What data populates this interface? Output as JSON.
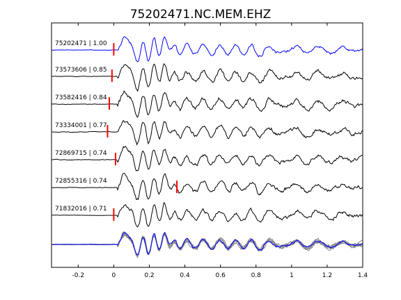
{
  "chart_data": {
    "type": "line",
    "title": "75202471.NC.MEM.EHZ",
    "xlabel": "",
    "ylabel": "",
    "xlim": [
      -0.35,
      1.4
    ],
    "x_ticks": [
      -0.2,
      0,
      0.2,
      0.4,
      0.6,
      0.8,
      1,
      1.2,
      1.4
    ],
    "x_tick_labels": [
      "-0.2",
      "0",
      "0.2",
      "0.4",
      "0.6",
      "0.8",
      "1",
      "1.2",
      "1.4"
    ],
    "grid": false,
    "colors": {
      "template": "#0000ff",
      "trace": "#000000",
      "pick": "#ff0000",
      "stack_member": "#888888",
      "axes": "#000000"
    },
    "traces": [
      {
        "id": "75202471",
        "cc": "1.00",
        "pick_time": 0.0,
        "color": "template"
      },
      {
        "id": "73573606",
        "cc": "0.85",
        "pick_time": -0.01,
        "color": "trace"
      },
      {
        "id": "73582416",
        "cc": "0.84",
        "pick_time": -0.025,
        "color": "trace"
      },
      {
        "id": "73334001",
        "cc": "0.77",
        "pick_time": -0.035,
        "color": "trace"
      },
      {
        "id": "72869715",
        "cc": "0.74",
        "pick_time": 0.01,
        "color": "trace"
      },
      {
        "id": "72855316",
        "cc": "0.74",
        "pick_time": 0.355,
        "color": "trace"
      },
      {
        "id": "71832016",
        "cc": "0.71",
        "pick_time": 0.0,
        "color": "trace"
      }
    ],
    "stack": {
      "note_colors": [
        "stack_member",
        "template"
      ]
    }
  }
}
